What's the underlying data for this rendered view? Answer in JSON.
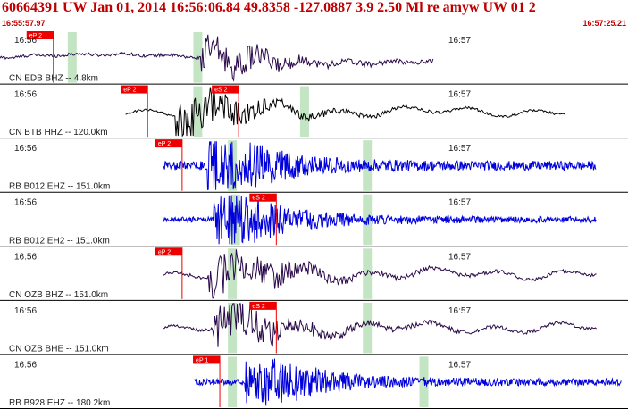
{
  "header": {
    "title": "60664391 UW Jan 01, 2014 16:56:06.84   49.8358 -127.0887  3.9 2.50 Ml re amyw UW 01   2",
    "start_time": "16:55:57.97",
    "end_time": "16:57:25.21"
  },
  "colors": {
    "header_text": "#c00000",
    "trace_dark": "#2a0a4a",
    "trace_blue": "#0000dd",
    "trace_black": "#000000",
    "pick_flag": "#ee0000",
    "phase_band": "#b8e0b8",
    "divider": "#000000"
  },
  "panels": [
    {
      "station": "CN EDB BHZ -- 4.8km",
      "time_left": "16:56",
      "time_right": "16:57",
      "trace_color": "dark",
      "picks": [
        "eP 2"
      ],
      "signal": {
        "start": 0.0,
        "end": 0.69,
        "onset": 0.32,
        "amplitude": 0.7,
        "noise": 0.08,
        "style": "local"
      }
    },
    {
      "station": "CN BTB HHZ -- 120.0km",
      "time_left": "16:56",
      "time_right": "16:57",
      "trace_color": "black",
      "picks": [
        "eP 2",
        "eS 2"
      ],
      "signal": {
        "start": 0.2,
        "end": 0.9,
        "onset": 0.28,
        "amplitude": 0.85,
        "noise": 0.05,
        "style": "wave"
      }
    },
    {
      "station": "RB B012 EHZ -- 151.0km",
      "time_left": "16:56",
      "time_right": "16:57",
      "trace_color": "blue",
      "picks": [
        "eP 2"
      ],
      "signal": {
        "start": 0.26,
        "end": 0.95,
        "onset": 0.33,
        "amplitude": 0.9,
        "noise": 0.18,
        "style": "burst"
      }
    },
    {
      "station": "RB B012 EH2 -- 151.0km",
      "time_left": "16:56",
      "time_right": "16:57",
      "trace_color": "blue",
      "picks": [
        "eS 2"
      ],
      "signal": {
        "start": 0.26,
        "end": 0.95,
        "onset": 0.34,
        "amplitude": 0.95,
        "noise": 0.12,
        "style": "burst"
      }
    },
    {
      "station": "CN OZB BHZ -- 151.0km",
      "time_left": "16:56",
      "time_right": "16:57",
      "trace_color": "dark",
      "picks": [
        "eP 2"
      ],
      "signal": {
        "start": 0.26,
        "end": 0.95,
        "onset": 0.33,
        "amplitude": 0.9,
        "noise": 0.07,
        "style": "wave"
      }
    },
    {
      "station": "CN OZB BHE -- 151.0km",
      "time_left": "16:56",
      "time_right": "16:57",
      "trace_color": "dark",
      "picks": [
        "eS 2"
      ],
      "signal": {
        "start": 0.26,
        "end": 0.95,
        "onset": 0.34,
        "amplitude": 0.85,
        "noise": 0.07,
        "style": "wave"
      }
    },
    {
      "station": "RB B928 EHZ -- 180.2km",
      "time_left": "16:56",
      "time_right": "16:57",
      "trace_color": "blue",
      "picks": [
        "eP 1"
      ],
      "signal": {
        "start": 0.31,
        "end": 0.99,
        "onset": 0.39,
        "amplitude": 0.85,
        "noise": 0.14,
        "style": "burst"
      }
    }
  ]
}
